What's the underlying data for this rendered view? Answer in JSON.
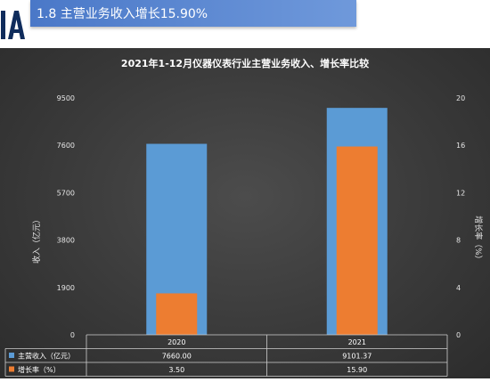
{
  "header": {
    "title": "1.8  主营业务收入增长15.90%"
  },
  "chart_data": {
    "type": "bar",
    "title": "2021年1-12月仪器仪表行业主营业务收入、增长率比较",
    "categories": [
      "2020",
      "2021"
    ],
    "series": [
      {
        "name": "主营收入（亿元）",
        "axis": "left",
        "values": [
          7660.0,
          9101.37
        ],
        "value_labels": [
          "7660.00",
          "9101.37"
        ],
        "color": "#5b9bd5"
      },
      {
        "name": "增长率（%）",
        "axis": "right",
        "values": [
          3.5,
          15.9
        ],
        "value_labels": [
          "3.50",
          "15.90"
        ],
        "color": "#ed7d31"
      }
    ],
    "ylabel": "收入（亿元）",
    "y2label": "增长率（%）",
    "ylim": [
      0,
      9500
    ],
    "yticks": [
      "0",
      "1900",
      "3800",
      "5700",
      "7600",
      "9500"
    ],
    "y2lim": [
      0,
      20
    ],
    "y2ticks": [
      "0",
      "4",
      "8",
      "12",
      "16",
      "20"
    ],
    "grid": false,
    "legend": "data-table"
  }
}
